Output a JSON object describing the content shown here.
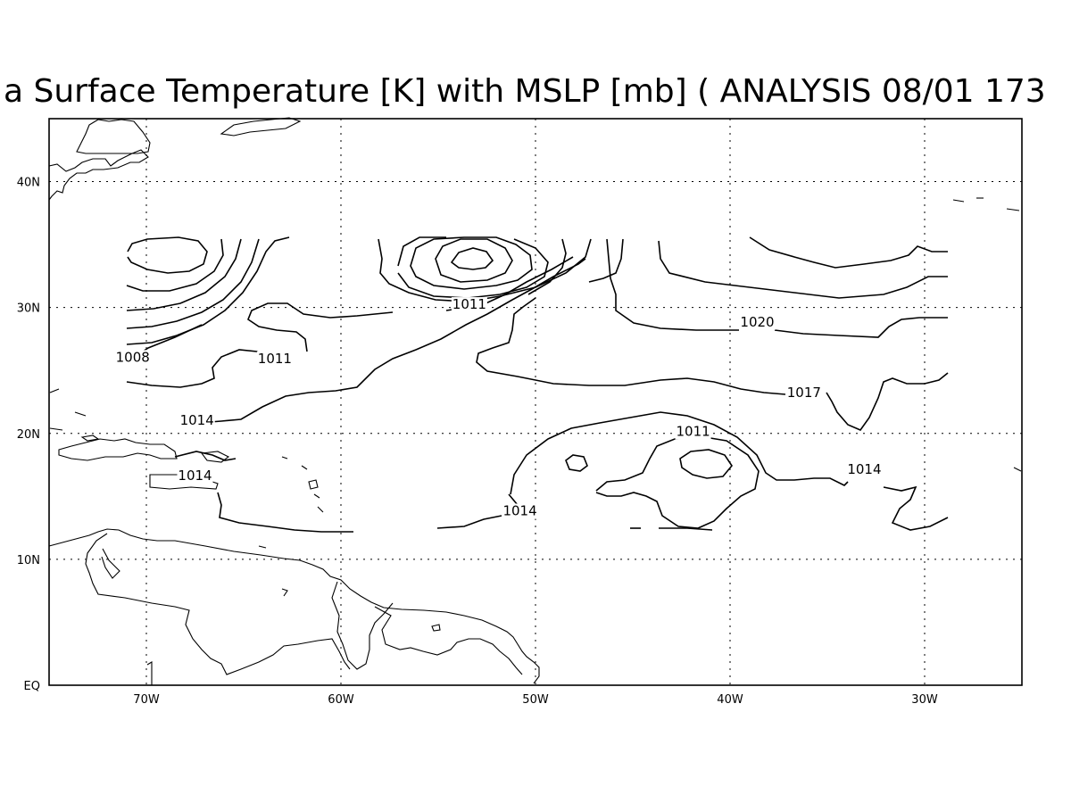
{
  "title": "a Surface Temperature [K] with MSLP [mb] ( ANALYSIS 08/01 173",
  "map": {
    "lon_range": [
      -75,
      -25
    ],
    "lat_range": [
      0,
      45
    ],
    "grid": true,
    "x_ticks": [
      {
        "lon": -70,
        "label": "70W"
      },
      {
        "lon": -60,
        "label": "60W"
      },
      {
        "lon": -50,
        "label": "50W"
      },
      {
        "lon": -40,
        "label": "40W"
      },
      {
        "lon": -30,
        "label": "30W"
      }
    ],
    "y_ticks": [
      {
        "lat": 0,
        "label": "EQ"
      },
      {
        "lat": 10,
        "label": "10N"
      },
      {
        "lat": 20,
        "label": "20N"
      },
      {
        "lat": 30,
        "label": "30N"
      },
      {
        "lat": 40,
        "label": "40N"
      }
    ],
    "contour_labels": [
      {
        "text": "1008",
        "lon": -70.7,
        "lat": 25.7
      },
      {
        "text": "1011",
        "lon": -63.4,
        "lat": 25.6
      },
      {
        "text": "1011",
        "lon": -53.4,
        "lat": 29.9
      },
      {
        "text": "1020",
        "lon": -38.6,
        "lat": 28.5
      },
      {
        "text": "1017",
        "lon": -36.2,
        "lat": 22.9
      },
      {
        "text": "1014",
        "lon": -67.4,
        "lat": 20.7
      },
      {
        "text": "1014",
        "lon": -67.5,
        "lat": 16.3
      },
      {
        "text": "1014",
        "lon": -50.8,
        "lat": 13.5
      },
      {
        "text": "1011",
        "lon": -41.9,
        "lat": 19.8
      },
      {
        "text": "1014",
        "lon": -33.1,
        "lat": 16.8
      }
    ]
  }
}
